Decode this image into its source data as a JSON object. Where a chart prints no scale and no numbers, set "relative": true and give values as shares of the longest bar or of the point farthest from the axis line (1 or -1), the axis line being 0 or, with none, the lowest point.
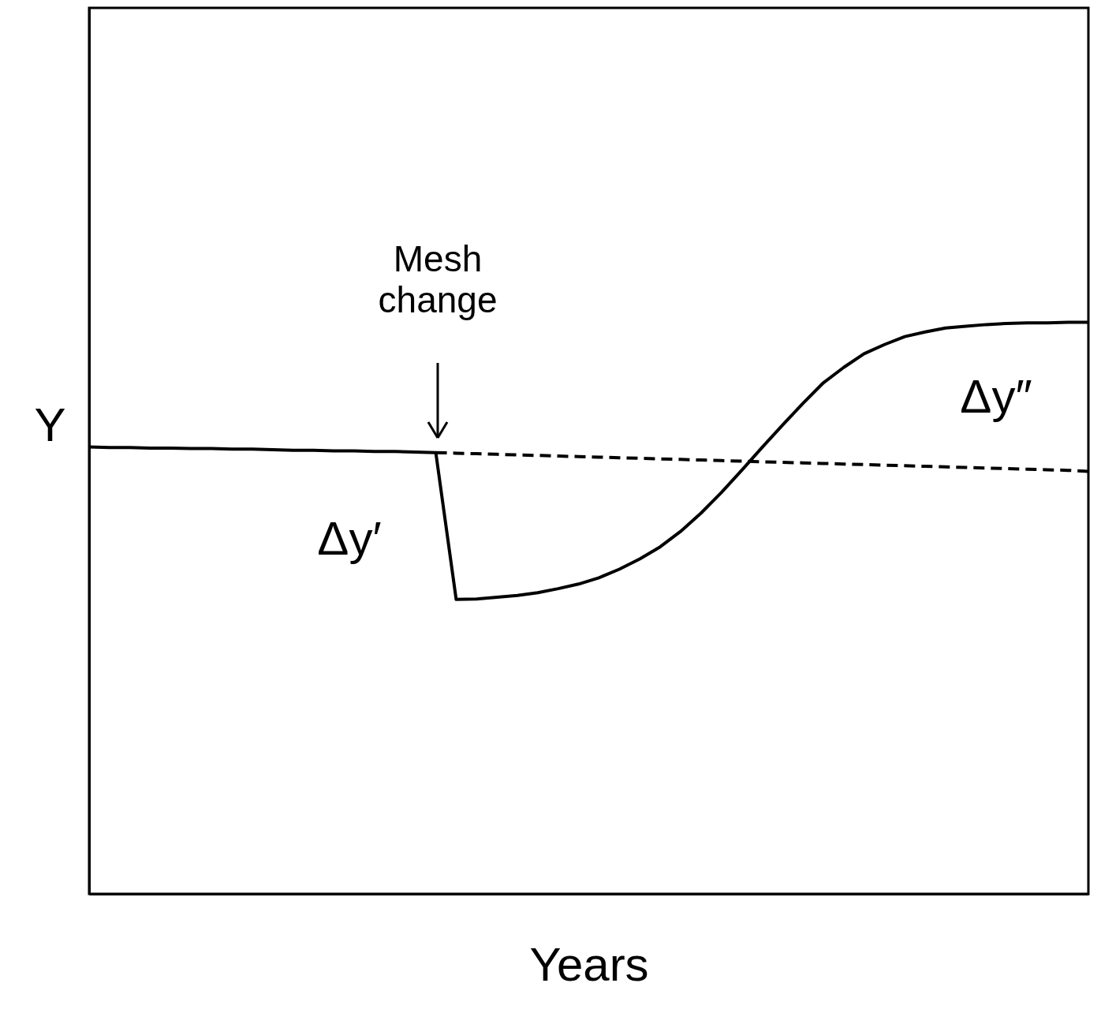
{
  "chart_data": {
    "type": "line",
    "relative": true,
    "xlabel": "Years",
    "ylabel": "Y",
    "grid": false,
    "categories": [
      null,
      null,
      null,
      null,
      null,
      null,
      null,
      null,
      null,
      null,
      null,
      null,
      null,
      null,
      null,
      null,
      null,
      null,
      null,
      null,
      null,
      null,
      null,
      null,
      null,
      null,
      null,
      null,
      null,
      null,
      null,
      null,
      null,
      null,
      null,
      null,
      null,
      null,
      null,
      null,
      null,
      null,
      null,
      null,
      null,
      null,
      null,
      null,
      null,
      null
    ],
    "series": [
      {
        "color": "#000000",
        "line_style": "solid",
        "values": [
          0.782,
          0.781,
          0.781,
          0.78,
          0.78,
          0.779,
          0.779,
          0.778,
          0.778,
          0.777,
          0.776,
          0.776,
          0.775,
          0.775,
          0.774,
          0.774,
          0.773,
          0.772,
          0.515,
          0.516,
          0.519,
          0.522,
          0.527,
          0.534,
          0.542,
          0.553,
          0.568,
          0.586,
          0.607,
          0.634,
          0.666,
          0.702,
          0.741,
          0.781,
          0.82,
          0.858,
          0.894,
          0.921,
          0.945,
          0.961,
          0.975,
          0.983,
          0.99,
          0.993,
          0.996,
          0.998,
          0.999,
          0.999,
          1,
          1
        ]
      },
      {
        "color": "#000000",
        "line_style": "dashed",
        "values": [
          null,
          null,
          null,
          null,
          null,
          null,
          null,
          null,
          null,
          null,
          null,
          null,
          null,
          null,
          null,
          null,
          null,
          0.772,
          0.771,
          0.77,
          0.769,
          0.768,
          0.767,
          0.766,
          0.765,
          0.764,
          0.763,
          0.762,
          0.761,
          0.76,
          0.759,
          0.758,
          0.757,
          0.756,
          0.755,
          0.754,
          0.753,
          0.752,
          0.751,
          0.75,
          0.749,
          0.748,
          0.747,
          0.746,
          0.745,
          0.744,
          0.743,
          0.742,
          0.741,
          0.739
        ]
      }
    ],
    "annotations": [
      "Mesh change",
      "Δy′",
      "Δy″"
    ]
  }
}
